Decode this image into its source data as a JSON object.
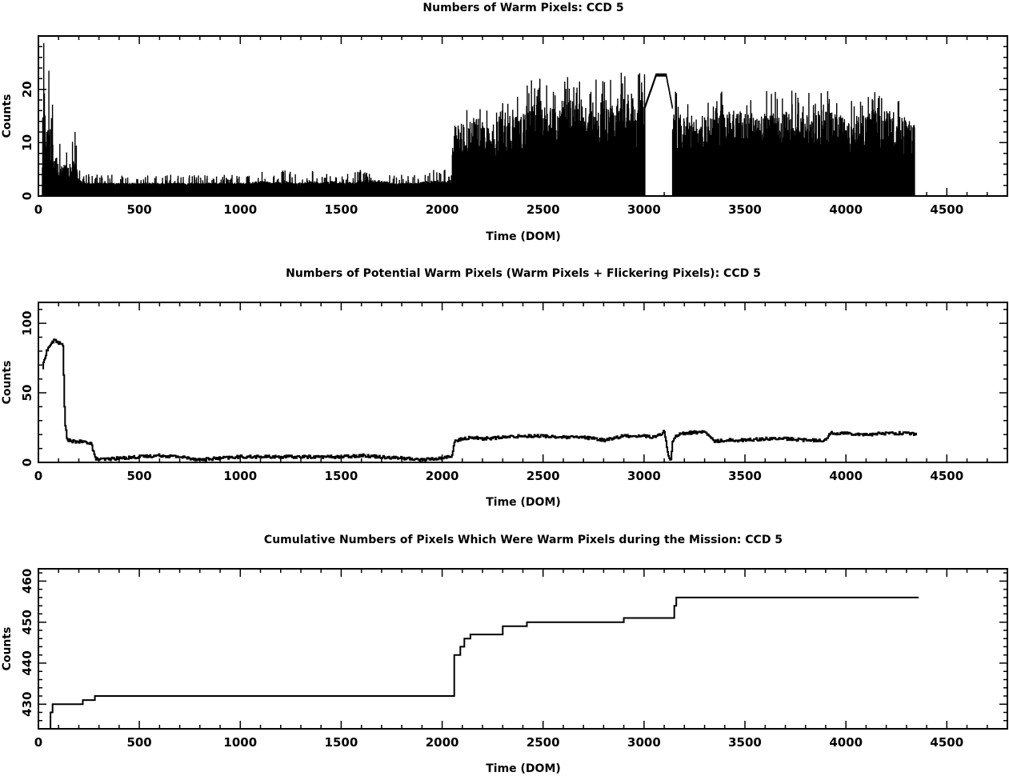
{
  "chart_data": [
    {
      "type": "line",
      "title": "Numbers of Warm Pixels: CCD 5",
      "xlabel": "Time (DOM)",
      "ylabel": "Counts",
      "xlim": [
        0,
        4800
      ],
      "ylim": [
        0,
        30
      ],
      "xticks": [
        0,
        500,
        1000,
        1500,
        2000,
        2500,
        3000,
        3500,
        4000,
        4500
      ],
      "yticks": [
        0,
        10,
        20
      ],
      "grid": false,
      "style": "dense-spikes",
      "color": "#000000",
      "series": [
        {
          "x": [
            20,
            40,
            60,
            80,
            100,
            140,
            180,
            200,
            260,
            320,
            380,
            440,
            500,
            560,
            620,
            680,
            740,
            800,
            860,
            920,
            980,
            1040,
            1100,
            1160,
            1220,
            1280,
            1340,
            1400,
            1460,
            1520,
            1580,
            1640,
            1700,
            1760,
            1820,
            1880,
            1940,
            2000,
            2040,
            2060,
            2120,
            2180,
            2240,
            2300,
            2360,
            2420,
            2480,
            2540,
            2600,
            2660,
            2720,
            2780,
            2840,
            2900,
            2960,
            3000,
            3040,
            3080,
            3120,
            3160,
            3200,
            3260,
            3320,
            3380,
            3440,
            3500,
            3560,
            3620,
            3680,
            3740,
            3800,
            3860,
            3920,
            3980,
            4040,
            4100,
            4160,
            4220,
            4280,
            4340
          ],
          "y": [
            30,
            28,
            23,
            15,
            10,
            10,
            13,
            4,
            3,
            3,
            3,
            3,
            3,
            3,
            3,
            3,
            3,
            3,
            3,
            3,
            3,
            3,
            4,
            3,
            4,
            3,
            4,
            3,
            4,
            3,
            4,
            4,
            4,
            3,
            3,
            3,
            4,
            4,
            4,
            14,
            14,
            15,
            13,
            15,
            16,
            17,
            18,
            17,
            18,
            18,
            17,
            18,
            18,
            19,
            18,
            19,
            22,
            23,
            18,
            17,
            16,
            15,
            15,
            16,
            16,
            16,
            15,
            16,
            16,
            16,
            16,
            16,
            16,
            15,
            15,
            16,
            16,
            16,
            15,
            14
          ]
        }
      ]
    },
    {
      "type": "line",
      "title": "Numbers of Potential Warm Pixels (Warm Pixels + Flickering Pixels): CCD 5",
      "xlabel": "Time (DOM)",
      "ylabel": "Counts",
      "xlim": [
        0,
        4800
      ],
      "ylim": [
        0,
        115
      ],
      "xticks": [
        0,
        500,
        1000,
        1500,
        2000,
        2500,
        3000,
        3500,
        4000,
        4500
      ],
      "yticks": [
        0,
        50,
        100
      ],
      "grid": false,
      "style": "step-line",
      "color": "#000000",
      "series": [
        {
          "x": [
            20,
            30,
            40,
            60,
            80,
            100,
            120,
            130,
            140,
            160,
            200,
            260,
            280,
            300,
            400,
            500,
            600,
            700,
            800,
            900,
            1000,
            1100,
            1200,
            1300,
            1400,
            1500,
            1600,
            1700,
            1800,
            1900,
            2000,
            2050,
            2060,
            2100,
            2150,
            2200,
            2300,
            2400,
            2500,
            2600,
            2700,
            2800,
            2900,
            3000,
            3050,
            3100,
            3120,
            3130,
            3140,
            3150,
            3170,
            3200,
            3300,
            3350,
            3400,
            3500,
            3600,
            3700,
            3800,
            3900,
            3920,
            4000,
            4100,
            4200,
            4300,
            4350
          ],
          "y": [
            68,
            75,
            80,
            85,
            88,
            86,
            84,
            30,
            17,
            15,
            15,
            14,
            3,
            2,
            3,
            4,
            5,
            4,
            2,
            3,
            4,
            4,
            4,
            4,
            4,
            4,
            5,
            4,
            3,
            2,
            3,
            5,
            15,
            17,
            18,
            17,
            18,
            19,
            19,
            18,
            18,
            16,
            19,
            19,
            18,
            22,
            5,
            0,
            15,
            18,
            20,
            21,
            22,
            15,
            16,
            16,
            17,
            17,
            16,
            16,
            21,
            21,
            20,
            21,
            21,
            20
          ]
        }
      ]
    },
    {
      "type": "line",
      "title": "Cumulative Numbers of Pixels Which Were Warm Pixels during the Mission: CCD 5",
      "xlabel": "Time (DOM)",
      "ylabel": "Counts",
      "xlim": [
        0,
        4800
      ],
      "ylim": [
        424,
        463
      ],
      "xticks": [
        0,
        500,
        1000,
        1500,
        2000,
        2500,
        3000,
        3500,
        4000,
        4500
      ],
      "yticks": [
        430,
        440,
        450,
        460
      ],
      "grid": false,
      "style": "step-line",
      "color": "#000000",
      "series": [
        {
          "x": [
            50,
            60,
            70,
            190,
            220,
            280,
            2060,
            2070,
            2090,
            2110,
            2140,
            2160,
            2300,
            2420,
            2900,
            3150,
            3160,
            4360
          ],
          "y": [
            424,
            428,
            430,
            430,
            431,
            432,
            442,
            442,
            444,
            446,
            447,
            447,
            449,
            450,
            451,
            454,
            456,
            456
          ]
        }
      ]
    }
  ]
}
